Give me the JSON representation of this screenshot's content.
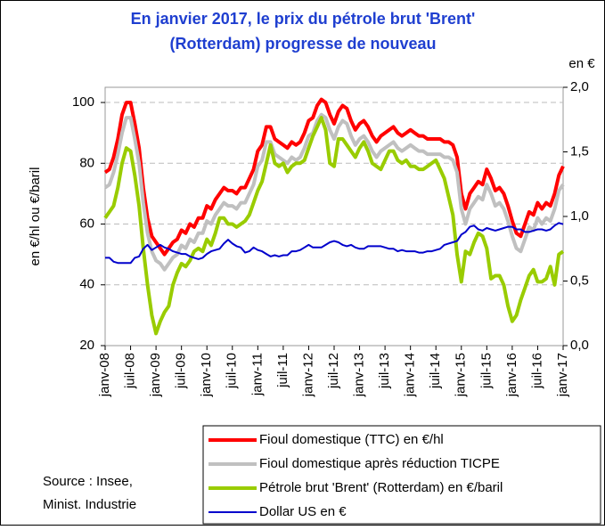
{
  "chart_data": {
    "type": "line",
    "title_lines": [
      "En janvier 2017, le prix du pétrole brut 'Brent'",
      "(Rotterdam) progresse de nouveau"
    ],
    "y_label": "en €/hl ou €/baril",
    "y2_label": "en €",
    "source_lines": [
      "Source : Insee,",
      "Minist. Industrie"
    ],
    "categories": [
      "janv-08",
      null,
      null,
      null,
      null,
      null,
      "juil-08",
      null,
      null,
      null,
      null,
      null,
      "janv-09",
      null,
      null,
      null,
      null,
      null,
      "juil-09",
      null,
      null,
      null,
      null,
      null,
      "janv-10",
      null,
      null,
      null,
      null,
      null,
      "juil-10",
      null,
      null,
      null,
      null,
      null,
      "janv-11",
      null,
      null,
      null,
      null,
      null,
      "juil-11",
      null,
      null,
      null,
      null,
      null,
      "janv-12",
      null,
      null,
      null,
      null,
      null,
      "juil-12",
      null,
      null,
      null,
      null,
      null,
      "janv-13",
      null,
      null,
      null,
      null,
      null,
      "juil-13",
      null,
      null,
      null,
      null,
      null,
      "janv-14",
      null,
      null,
      null,
      null,
      null,
      "juil-14",
      null,
      null,
      null,
      null,
      null,
      "janv-15",
      null,
      null,
      null,
      null,
      null,
      "juil-15",
      null,
      null,
      null,
      null,
      null,
      "janv-16",
      null,
      null,
      null,
      null,
      null,
      "juil-16",
      null,
      null,
      null,
      null,
      null,
      "janv-17"
    ],
    "ylim": [
      20,
      105
    ],
    "yticks": [
      20,
      40,
      60,
      80,
      100
    ],
    "y2lim": [
      0,
      2
    ],
    "y2ticks": [
      {
        "value": 0,
        "label": "0,0"
      },
      {
        "value": 0.5,
        "label": "0,5"
      },
      {
        "value": 1,
        "label": "1,0"
      },
      {
        "value": 1.5,
        "label": "1,5"
      },
      {
        "value": 2,
        "label": "2,0"
      }
    ],
    "grid": true,
    "series": [
      {
        "name": "Fioul domestique (TTC) en €/hl",
        "color": "#ff0000",
        "values": [
          77,
          78,
          82,
          88,
          96,
          100,
          100,
          93,
          85,
          72,
          62,
          56,
          54,
          52,
          50,
          52,
          54,
          55,
          58,
          57,
          60,
          59,
          62,
          62,
          66,
          65,
          68,
          70,
          72,
          71,
          71,
          70,
          72,
          72,
          75,
          78,
          84,
          86,
          92,
          92,
          88,
          87,
          86,
          85,
          87,
          86,
          87,
          90,
          94,
          95,
          99,
          101,
          100,
          96,
          93,
          97,
          99,
          98,
          94,
          91,
          93,
          94,
          92,
          89,
          87,
          89,
          90,
          91,
          92,
          90,
          89,
          90,
          91,
          90,
          89,
          89,
          88,
          88,
          88,
          88,
          87,
          87,
          86,
          82,
          70,
          65,
          70,
          72,
          74,
          73,
          78,
          75,
          71,
          72,
          70,
          66,
          61,
          57,
          56,
          60,
          64,
          63,
          67,
          65,
          67,
          66,
          70,
          76,
          79
        ]
      },
      {
        "name": "Fioul domestique après réduction TICPE",
        "color": "#c0c0c0",
        "values": [
          72,
          73,
          77,
          83,
          90,
          95,
          95,
          88,
          80,
          67,
          57,
          51,
          48,
          47,
          45,
          47,
          49,
          50,
          53,
          52,
          55,
          54,
          57,
          57,
          61,
          60,
          63,
          65,
          67,
          66,
          66,
          65,
          67,
          67,
          70,
          73,
          79,
          81,
          87,
          87,
          83,
          82,
          81,
          80,
          82,
          81,
          82,
          85,
          89,
          90,
          94,
          96,
          95,
          91,
          88,
          92,
          94,
          93,
          89,
          86,
          88,
          89,
          87,
          84,
          82,
          84,
          85,
          86,
          87,
          85,
          84,
          85,
          86,
          85,
          84,
          84,
          83,
          83,
          83,
          83,
          82,
          82,
          81,
          77,
          65,
          60,
          65,
          67,
          69,
          68,
          73,
          70,
          66,
          67,
          65,
          61,
          56,
          52,
          51,
          55,
          59,
          58,
          62,
          60,
          62,
          61,
          65,
          71,
          73
        ]
      },
      {
        "name": "Pétrole brut 'Brent' (Rotterdam) en €/baril",
        "color": "#99cc00",
        "values": [
          62,
          64,
          66,
          72,
          80,
          85,
          84,
          76,
          66,
          52,
          40,
          30,
          24,
          28,
          31,
          33,
          40,
          44,
          47,
          46,
          48,
          51,
          52,
          51,
          55,
          53,
          57,
          62,
          62,
          60,
          60,
          59,
          60,
          61,
          63,
          67,
          71,
          74,
          80,
          86,
          80,
          79,
          80,
          77,
          79,
          80,
          80,
          81,
          85,
          89,
          92,
          95,
          91,
          80,
          79,
          88,
          88,
          86,
          84,
          82,
          85,
          87,
          84,
          80,
          79,
          78,
          81,
          84,
          84,
          81,
          80,
          81,
          79,
          79,
          78,
          78,
          79,
          80,
          81,
          78,
          75,
          69,
          63,
          50,
          41,
          51,
          50,
          54,
          57,
          56,
          52,
          42,
          43,
          43,
          40,
          33,
          28,
          30,
          35,
          39,
          43,
          45,
          41,
          41,
          42,
          46,
          40,
          50,
          51
        ]
      },
      {
        "name": "Dollar US en €",
        "color": "#0000cc",
        "axis": "y2",
        "values": [
          0.68,
          0.68,
          0.65,
          0.64,
          0.64,
          0.64,
          0.64,
          0.68,
          0.69,
          0.75,
          0.78,
          0.74,
          0.76,
          0.78,
          0.76,
          0.75,
          0.73,
          0.72,
          0.71,
          0.71,
          0.69,
          0.68,
          0.67,
          0.68,
          0.71,
          0.73,
          0.74,
          0.75,
          0.79,
          0.82,
          0.79,
          0.77,
          0.76,
          0.72,
          0.73,
          0.76,
          0.74,
          0.73,
          0.71,
          0.69,
          0.7,
          0.69,
          0.7,
          0.7,
          0.73,
          0.73,
          0.74,
          0.76,
          0.78,
          0.76,
          0.76,
          0.76,
          0.78,
          0.8,
          0.81,
          0.8,
          0.78,
          0.77,
          0.78,
          0.76,
          0.75,
          0.75,
          0.77,
          0.77,
          0.77,
          0.77,
          0.76,
          0.75,
          0.75,
          0.73,
          0.74,
          0.73,
          0.73,
          0.73,
          0.72,
          0.72,
          0.73,
          0.73,
          0.74,
          0.75,
          0.78,
          0.79,
          0.8,
          0.81,
          0.86,
          0.88,
          0.92,
          0.93,
          0.9,
          0.89,
          0.91,
          0.9,
          0.89,
          0.9,
          0.91,
          0.92,
          0.92,
          0.9,
          0.9,
          0.88,
          0.88,
          0.89,
          0.9,
          0.9,
          0.89,
          0.9,
          0.93,
          0.95,
          0.94
        ]
      }
    ]
  }
}
